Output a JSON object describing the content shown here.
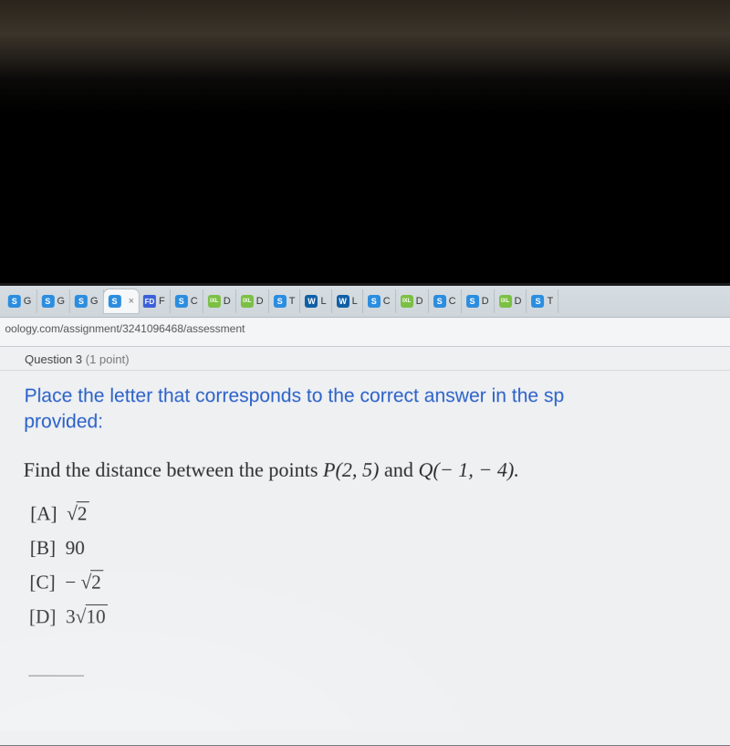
{
  "urlbar": {
    "url": "oology.com/assignment/3241096468/assessment"
  },
  "tabs": [
    {
      "icon": "s",
      "iconClass": "fi-s",
      "label": "G"
    },
    {
      "icon": "s",
      "iconClass": "fi-s",
      "label": "G"
    },
    {
      "icon": "s",
      "iconClass": "fi-s",
      "label": "G"
    },
    {
      "icon": "s",
      "iconClass": "fi-s",
      "label": "",
      "active": true,
      "closable": true
    },
    {
      "icon": "FD",
      "iconClass": "fi-fd",
      "label": "F"
    },
    {
      "icon": "s",
      "iconClass": "fi-s",
      "label": "C"
    },
    {
      "icon": "ix",
      "iconClass": "fi-ix",
      "label": "D"
    },
    {
      "icon": "ix",
      "iconClass": "fi-ix",
      "label": "D"
    },
    {
      "icon": "s",
      "iconClass": "fi-s",
      "label": "T"
    },
    {
      "icon": "W",
      "iconClass": "fi-w",
      "label": "L"
    },
    {
      "icon": "W",
      "iconClass": "fi-w",
      "label": "L"
    },
    {
      "icon": "s",
      "iconClass": "fi-s",
      "label": "C"
    },
    {
      "icon": "ix",
      "iconClass": "fi-ix",
      "label": "D"
    },
    {
      "icon": "s",
      "iconClass": "fi-s",
      "label": "C"
    },
    {
      "icon": "s",
      "iconClass": "fi-s",
      "label": "D"
    },
    {
      "icon": "ix",
      "iconClass": "fi-ix",
      "label": "D"
    },
    {
      "icon": "s",
      "iconClass": "fi-s",
      "label": "T"
    }
  ],
  "question": {
    "header": "Question 3",
    "points": "(1 point)",
    "instruction": "Place the letter that corresponds to the correct answer in the sp",
    "instruction2": "provided:",
    "prompt_pre": "Find the distance between the points ",
    "prompt_p": "P(2, 5)",
    "prompt_mid": " and ",
    "prompt_q": "Q(− 1, − 4).",
    "options": {
      "A": {
        "label": "[A]",
        "type": "sqrt",
        "value": "2"
      },
      "B": {
        "label": "[B]",
        "type": "plain",
        "value": "90"
      },
      "C": {
        "label": "[C]",
        "type": "negsqrt",
        "value": "2"
      },
      "D": {
        "label": "[D]",
        "type": "coefsqrt",
        "coef": "3",
        "value": "10"
      }
    }
  },
  "style": {
    "instruction_color": "#2a60c8",
    "instruction_fontsize": 21,
    "prompt_fontsize": 22,
    "option_fontsize": 21,
    "content_bg": "#eef0f2",
    "tabstrip_bg_top": "#d6dde2",
    "tabstrip_bg_bottom": "#cfd6db"
  }
}
